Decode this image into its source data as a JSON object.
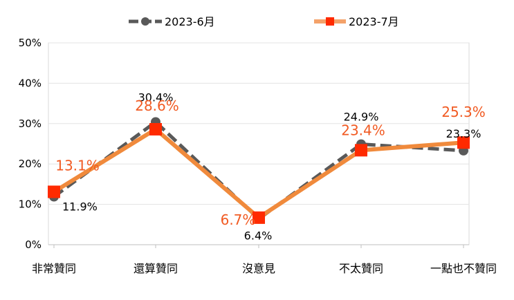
{
  "chart_data": {
    "type": "line",
    "categories": [
      "非常贊同",
      "還算贊同",
      "沒意見",
      "不太贊同",
      "一點也不贊同"
    ],
    "series": [
      {
        "name": "2023-6月",
        "values": [
          11.9,
          30.4,
          6.4,
          24.9,
          23.3
        ],
        "labels": [
          "11.9%",
          "30.4%",
          "6.4%",
          "24.9%",
          "23.3%"
        ],
        "color": "#595959",
        "style": "dashed"
      },
      {
        "name": "2023-7月",
        "values": [
          13.1,
          28.6,
          6.7,
          23.4,
          25.3
        ],
        "labels": [
          "13.1%",
          "28.6%",
          "6.7%",
          "23.4%",
          "25.3%"
        ],
        "color": "#f15a22",
        "style": "solid"
      }
    ],
    "y_ticks": [
      "0%",
      "10%",
      "20%",
      "30%",
      "40%",
      "50%"
    ],
    "ylim": [
      0,
      50
    ],
    "grid": true,
    "legend": "top"
  }
}
